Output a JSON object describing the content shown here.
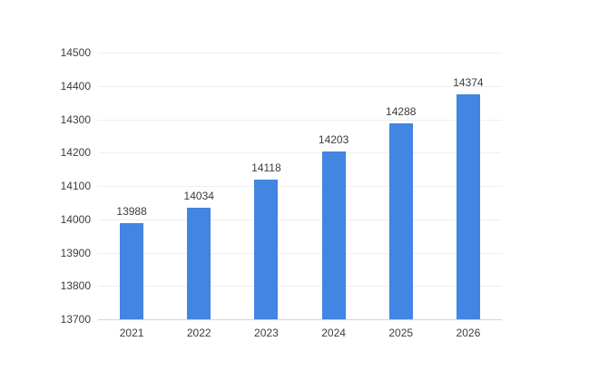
{
  "chart_data": {
    "type": "bar",
    "title": "",
    "xlabel": "",
    "ylabel": "",
    "categories": [
      "2021",
      "2022",
      "2023",
      "2024",
      "2025",
      "2026"
    ],
    "values": [
      13988,
      14034,
      14118,
      14203,
      14288,
      14374
    ],
    "value_labels": [
      "13988",
      "14034",
      "14118",
      "14203",
      "14288",
      "14374"
    ],
    "ylim": [
      13700,
      14500
    ],
    "ytick_step": 100,
    "yticks": [
      14500,
      14400,
      14300,
      14200,
      14100,
      14000,
      13900,
      13800,
      13700
    ],
    "grid": true,
    "legend": false,
    "colors": {
      "bar": "#4285e2",
      "gridline": "#efefef",
      "axis_line": "#d4d4d4",
      "label_text": "#3c3c3c",
      "background": "#ffffff"
    }
  }
}
